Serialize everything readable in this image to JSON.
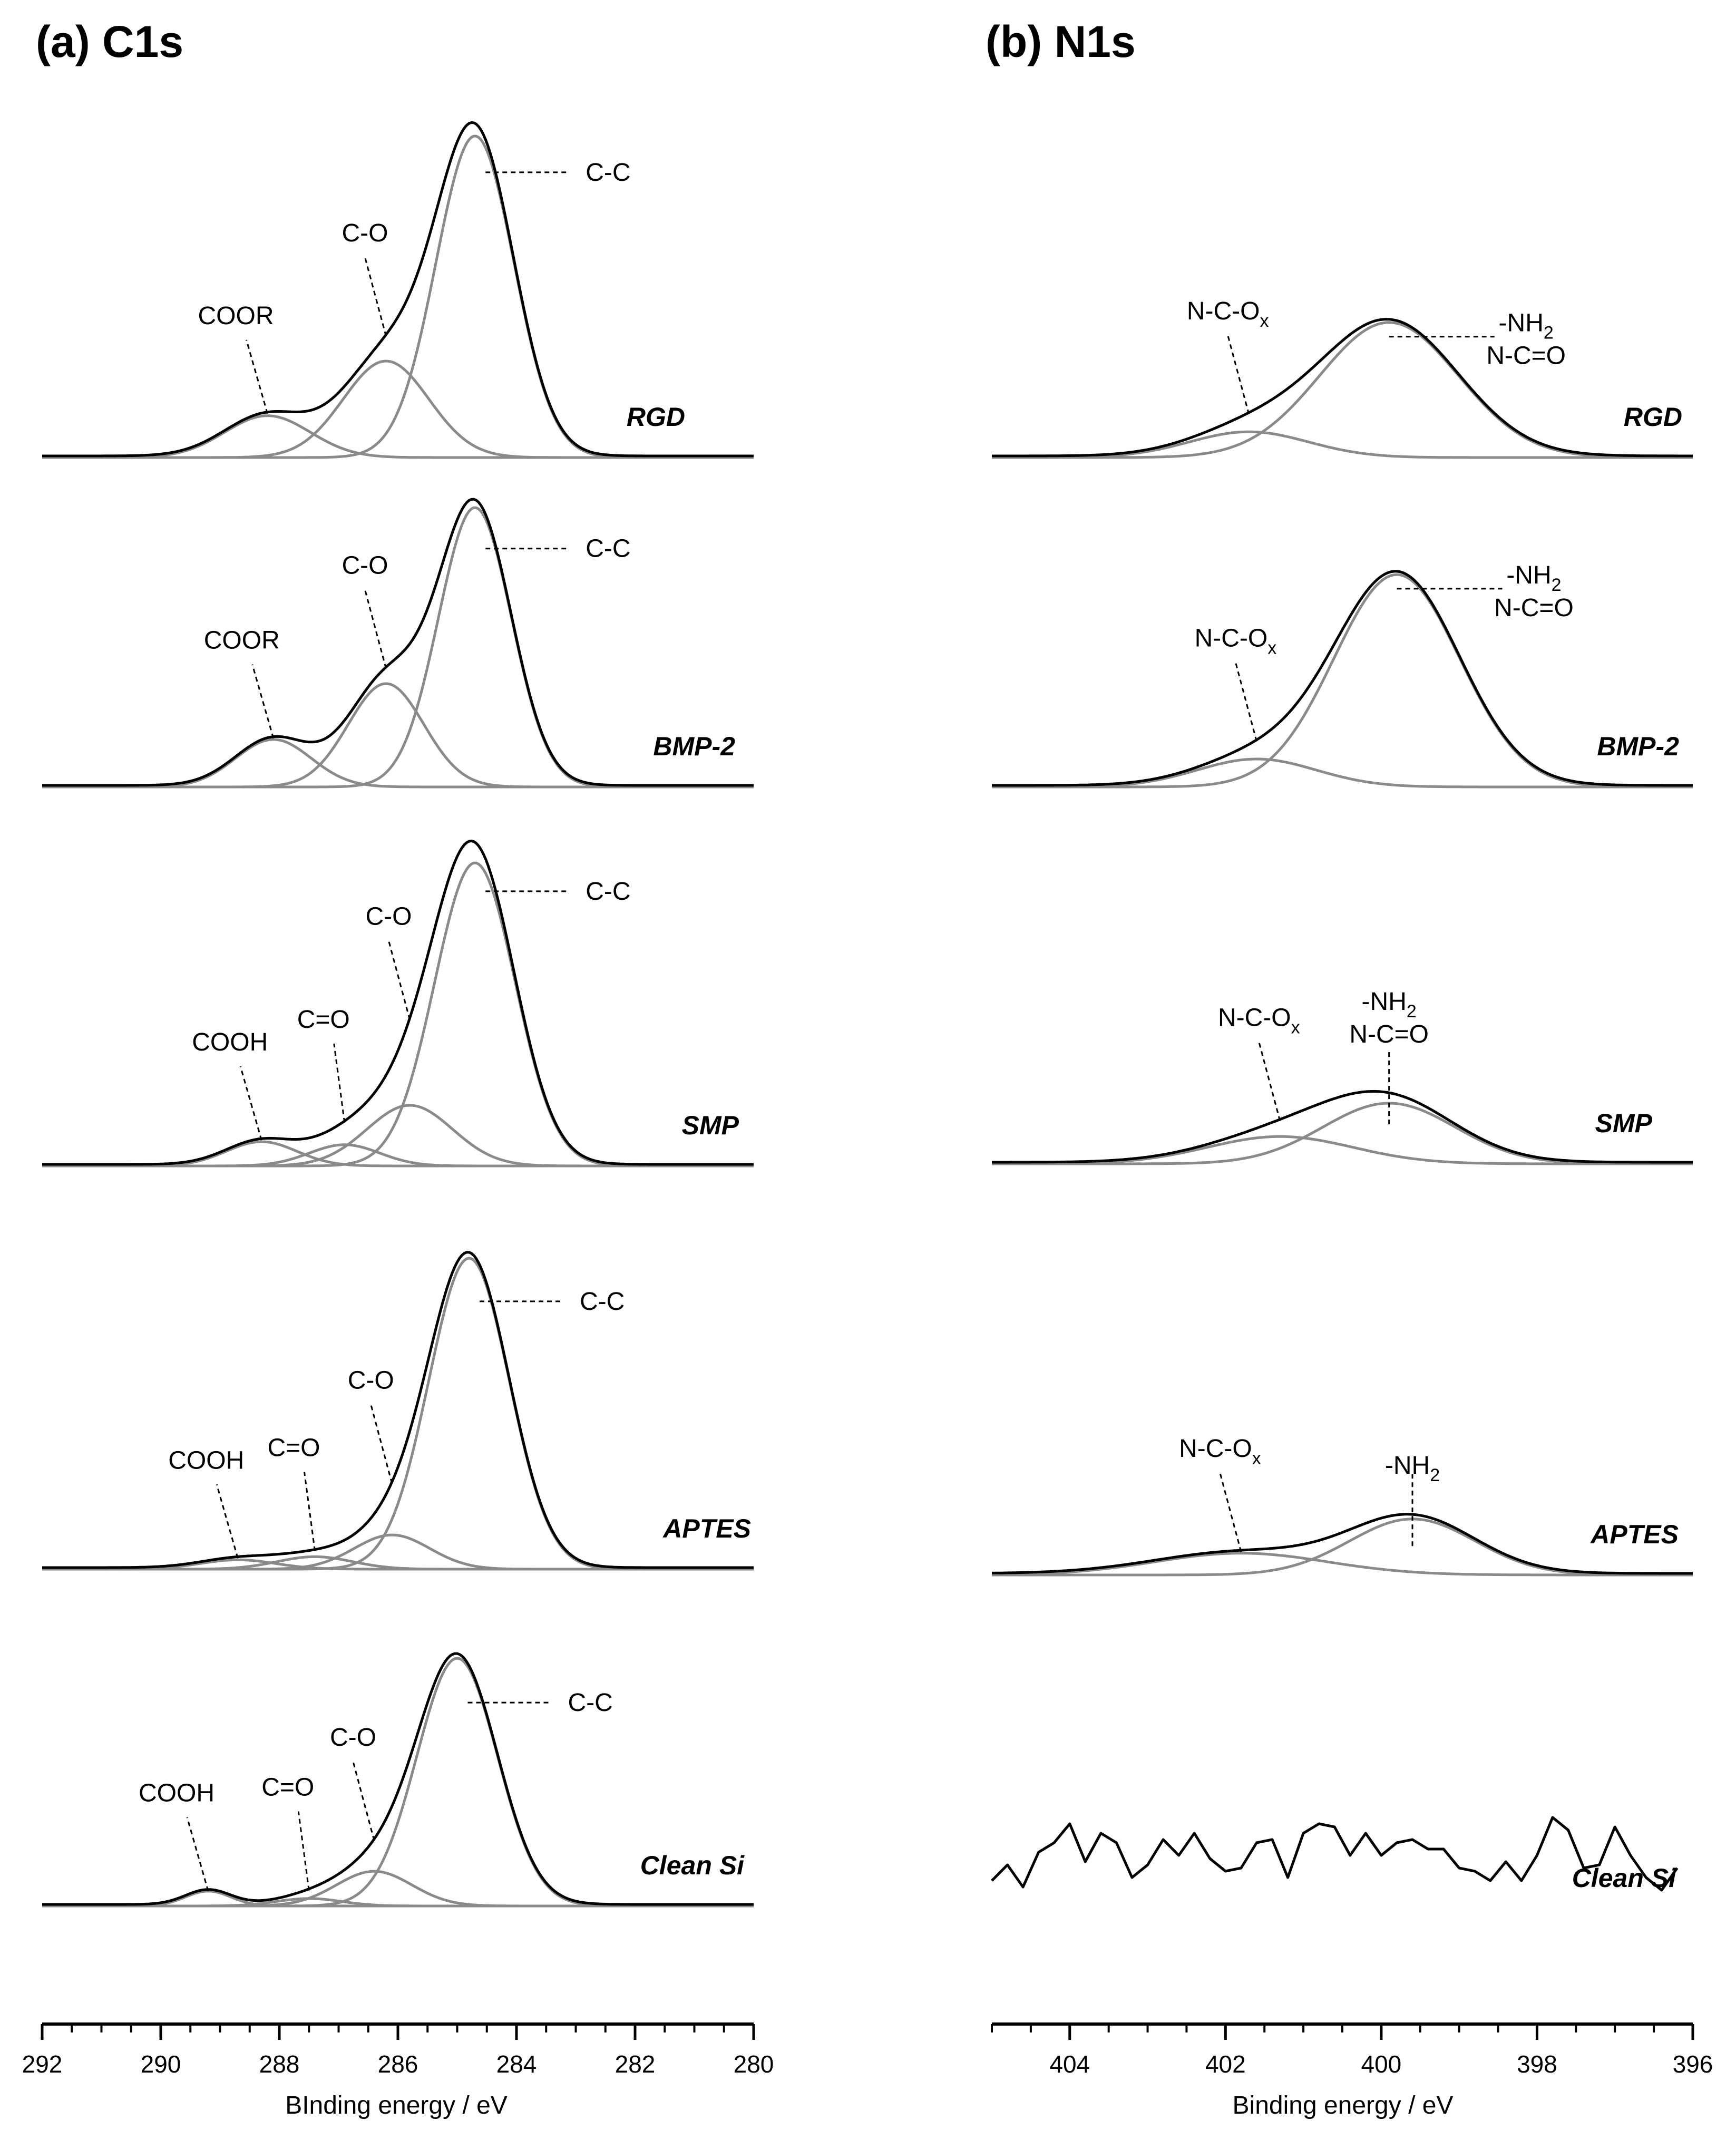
{
  "chart_data": [
    {
      "type": "line",
      "title": "(a) C1s",
      "xlabel": "BInding energy / eV",
      "ylabel": "",
      "xlim": [
        292,
        280
      ],
      "x_ticks": [
        "292",
        "290",
        "288",
        "286",
        "284",
        "282",
        "280"
      ],
      "colors": {
        "envelope": "#000000",
        "component": "#8a8a8a",
        "leader": "#000000"
      },
      "panels": [
        {
          "sample": "RGD",
          "components": [
            {
              "name": "C-C",
              "center": 284.7,
              "height": 1.0,
              "fwhm": 1.55
            },
            {
              "name": "C-O",
              "center": 286.2,
              "height": 0.3,
              "fwhm": 1.7
            },
            {
              "name": "COOR",
              "center": 288.2,
              "height": 0.13,
              "fwhm": 1.7
            }
          ],
          "labels": [
            {
              "text": "C-C",
              "x": 284.7
            },
            {
              "text": "C-O",
              "x": 286.2
            },
            {
              "text": "COOR",
              "x": 288.2
            }
          ]
        },
        {
          "sample": "BMP-2",
          "components": [
            {
              "name": "C-C",
              "center": 284.7,
              "height": 1.0,
              "fwhm": 1.45
            },
            {
              "name": "C-O",
              "center": 286.2,
              "height": 0.37,
              "fwhm": 1.5
            },
            {
              "name": "COOR",
              "center": 288.1,
              "height": 0.17,
              "fwhm": 1.5
            }
          ],
          "labels": [
            {
              "text": "C-C",
              "x": 284.7
            },
            {
              "text": "C-O",
              "x": 286.2
            },
            {
              "text": "COOR",
              "x": 288.1
            }
          ]
        },
        {
          "sample": "SMP",
          "components": [
            {
              "name": "C-C",
              "center": 284.7,
              "height": 1.0,
              "fwhm": 1.6
            },
            {
              "name": "C-O",
              "center": 285.8,
              "height": 0.2,
              "fwhm": 1.7
            },
            {
              "name": "C=O",
              "center": 286.9,
              "height": 0.07,
              "fwhm": 1.4
            },
            {
              "name": "COOH",
              "center": 288.3,
              "height": 0.08,
              "fwhm": 1.4
            }
          ],
          "labels": [
            {
              "text": "C-C",
              "x": 284.7
            },
            {
              "text": "C-O",
              "x": 285.8
            },
            {
              "text": "C=O",
              "x": 286.9
            },
            {
              "text": "COOH",
              "x": 288.3
            }
          ]
        },
        {
          "sample": "APTES",
          "components": [
            {
              "name": "C-C",
              "center": 284.8,
              "height": 1.0,
              "fwhm": 1.6
            },
            {
              "name": "C-O",
              "center": 286.1,
              "height": 0.11,
              "fwhm": 1.5
            },
            {
              "name": "C=O",
              "center": 287.4,
              "height": 0.04,
              "fwhm": 1.5
            },
            {
              "name": "COOH",
              "center": 288.7,
              "height": 0.03,
              "fwhm": 1.5
            }
          ],
          "labels": [
            {
              "text": "C-C",
              "x": 284.8
            },
            {
              "text": "C-O",
              "x": 286.1
            },
            {
              "text": "C=O",
              "x": 287.4
            },
            {
              "text": "COOH",
              "x": 288.7
            }
          ]
        },
        {
          "sample": "Clean Si",
          "components": [
            {
              "name": "C-C",
              "center": 285.0,
              "height": 1.0,
              "fwhm": 1.6
            },
            {
              "name": "C-O",
              "center": 286.4,
              "height": 0.14,
              "fwhm": 1.5
            },
            {
              "name": "C=O",
              "center": 287.5,
              "height": 0.03,
              "fwhm": 1.3
            },
            {
              "name": "COOH",
              "center": 289.2,
              "height": 0.06,
              "fwhm": 0.9
            }
          ],
          "labels": [
            {
              "text": "C-C",
              "x": 285.0
            },
            {
              "text": "C-O",
              "x": 286.4
            },
            {
              "text": "C=O",
              "x": 287.5
            },
            {
              "text": "COOH",
              "x": 289.2
            }
          ]
        }
      ]
    },
    {
      "type": "line",
      "title": "(b) N1s",
      "xlabel": "Binding energy / eV",
      "ylabel": "",
      "xlim": [
        405,
        396
      ],
      "x_ticks": [
        "404",
        "402",
        "400",
        "398",
        "396"
      ],
      "panels": [
        {
          "sample": "RGD",
          "components": [
            {
              "name": "-NH2 N-C=O",
              "center": 399.9,
              "height": 0.42,
              "fwhm": 2.1
            },
            {
              "name": "N-C-Ox",
              "center": 401.7,
              "height": 0.08,
              "fwhm": 1.8
            }
          ],
          "labels": [
            {
              "text": "-NH",
              "sub": "2",
              "line2": "N-C=O",
              "x": 399.9
            },
            {
              "text": "N-C-O",
              "sub": "x",
              "x": 401.7
            }
          ]
        },
        {
          "sample": "BMP-2",
          "components": [
            {
              "name": "-NH2 N-C=O",
              "center": 399.8,
              "height": 0.76,
              "fwhm": 1.9
            },
            {
              "name": "N-C-Ox",
              "center": 401.6,
              "height": 0.1,
              "fwhm": 1.8
            }
          ],
          "labels": [
            {
              "text": "-NH",
              "sub": "2",
              "line2": "N-C=O",
              "x": 399.8
            },
            {
              "text": "N-C-O",
              "sub": "x",
              "x": 401.6
            }
          ]
        },
        {
          "sample": "SMP",
          "components": [
            {
              "name": "-NH2 N-C=O",
              "center": 399.9,
              "height": 0.2,
              "fwhm": 2.0
            },
            {
              "name": "N-C-Ox",
              "center": 401.3,
              "height": 0.09,
              "fwhm": 2.2
            }
          ],
          "labels": [
            {
              "text": "-NH",
              "sub": "2",
              "line2": "N-C=O",
              "x": 399.9
            },
            {
              "text": "N-C-O",
              "sub": "x",
              "x": 401.3
            }
          ]
        },
        {
          "sample": "APTES",
          "components": [
            {
              "name": "-NH2",
              "center": 399.6,
              "height": 0.18,
              "fwhm": 1.9
            },
            {
              "name": "N-C-Ox",
              "center": 401.8,
              "height": 0.07,
              "fwhm": 2.6
            }
          ],
          "labels": [
            {
              "text": "-NH",
              "sub": "2",
              "x": 399.6
            },
            {
              "text": "N-C-O",
              "sub": "x",
              "x": 401.8
            }
          ]
        },
        {
          "sample": "Clean Si",
          "components": [],
          "labels": [],
          "noise": [
            [
              405.0,
              0.02
            ],
            [
              404.8,
              0.07
            ],
            [
              404.6,
              0.0
            ],
            [
              404.4,
              0.11
            ],
            [
              404.2,
              0.14
            ],
            [
              404.0,
              0.2
            ],
            [
              403.8,
              0.08
            ],
            [
              403.6,
              0.17
            ],
            [
              403.4,
              0.14
            ],
            [
              403.2,
              0.03
            ],
            [
              403.0,
              0.07
            ],
            [
              402.8,
              0.15
            ],
            [
              402.6,
              0.1
            ],
            [
              402.4,
              0.17
            ],
            [
              402.2,
              0.09
            ],
            [
              402.0,
              0.05
            ],
            [
              401.8,
              0.06
            ],
            [
              401.6,
              0.14
            ],
            [
              401.4,
              0.15
            ],
            [
              401.2,
              0.03
            ],
            [
              401.0,
              0.17
            ],
            [
              400.8,
              0.2
            ],
            [
              400.6,
              0.19
            ],
            [
              400.4,
              0.1
            ],
            [
              400.2,
              0.17
            ],
            [
              400.0,
              0.1
            ],
            [
              399.8,
              0.14
            ],
            [
              399.6,
              0.15
            ],
            [
              399.4,
              0.12
            ],
            [
              399.2,
              0.12
            ],
            [
              399.0,
              0.06
            ],
            [
              398.8,
              0.05
            ],
            [
              398.6,
              0.02
            ],
            [
              398.4,
              0.08
            ],
            [
              398.2,
              0.02
            ],
            [
              398.0,
              0.1
            ],
            [
              397.8,
              0.22
            ],
            [
              397.6,
              0.18
            ],
            [
              397.4,
              0.06
            ],
            [
              397.2,
              0.07
            ],
            [
              397.0,
              0.19
            ],
            [
              396.8,
              0.1
            ],
            [
              396.6,
              0.03
            ],
            [
              396.4,
              -0.01
            ],
            [
              396.2,
              0.06
            ]
          ]
        }
      ]
    }
  ]
}
